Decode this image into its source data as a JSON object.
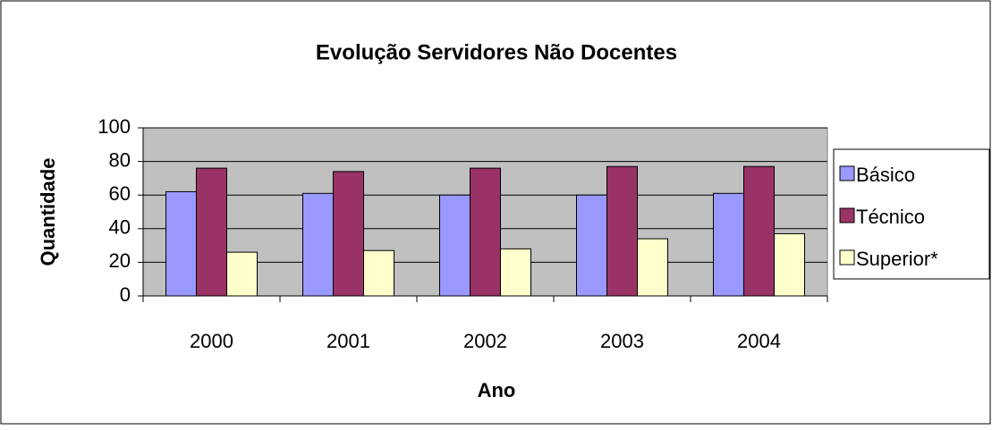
{
  "chart_data": {
    "type": "bar",
    "title": "Evolução Servidores Não Docentes",
    "x_label": "Ano",
    "y_label": "Quantidade",
    "categories": [
      "2000",
      "2001",
      "2002",
      "2003",
      "2004"
    ],
    "series": [
      {
        "name": "Básico",
        "color": "#9999ff",
        "values": [
          62,
          61,
          60,
          60,
          61
        ]
      },
      {
        "name": "Técnico",
        "color": "#993366",
        "values": [
          76,
          74,
          76,
          77,
          77
        ]
      },
      {
        "name": "Superior*",
        "color": "#ffffcc",
        "values": [
          26,
          27,
          28,
          34,
          37
        ]
      }
    ],
    "ylim": [
      0,
      100
    ],
    "yticks": [
      0,
      20,
      40,
      60,
      80,
      100
    ],
    "grid": true,
    "legend": "right"
  }
}
